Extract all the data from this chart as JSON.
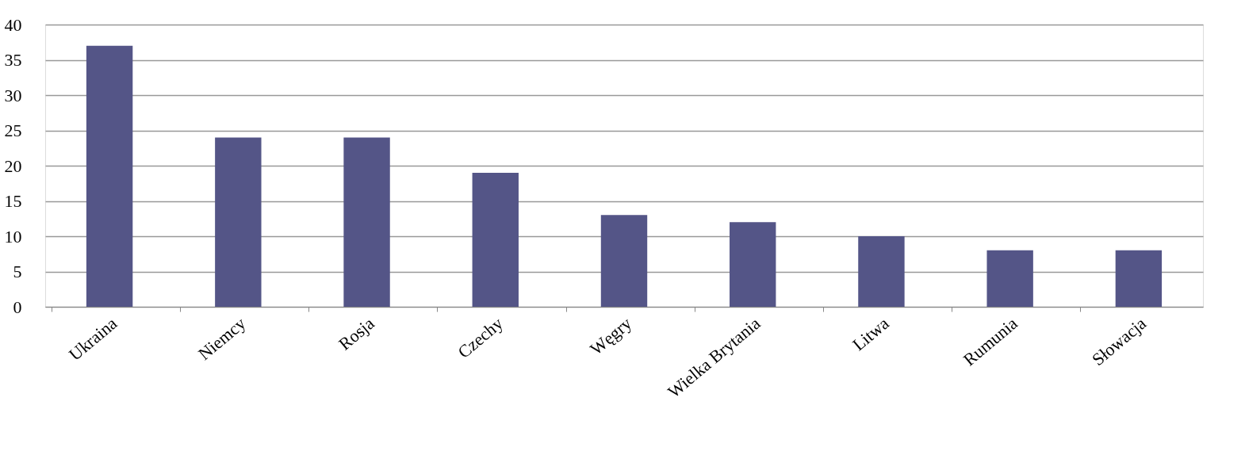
{
  "chart_data": {
    "type": "bar",
    "categories": [
      "Ukraina",
      "Niemcy",
      "Rosja",
      "Czechy",
      "Węgry",
      "Wielka Brytania",
      "Litwa",
      "Rumunia",
      "Słowacja"
    ],
    "values": [
      37,
      24,
      24,
      19,
      13,
      12,
      10,
      8,
      8
    ],
    "color": "#545587",
    "ylim": [
      0,
      40
    ],
    "yticks": [
      0,
      5,
      10,
      15,
      20,
      25,
      30,
      35,
      40
    ],
    "grid": "y"
  }
}
